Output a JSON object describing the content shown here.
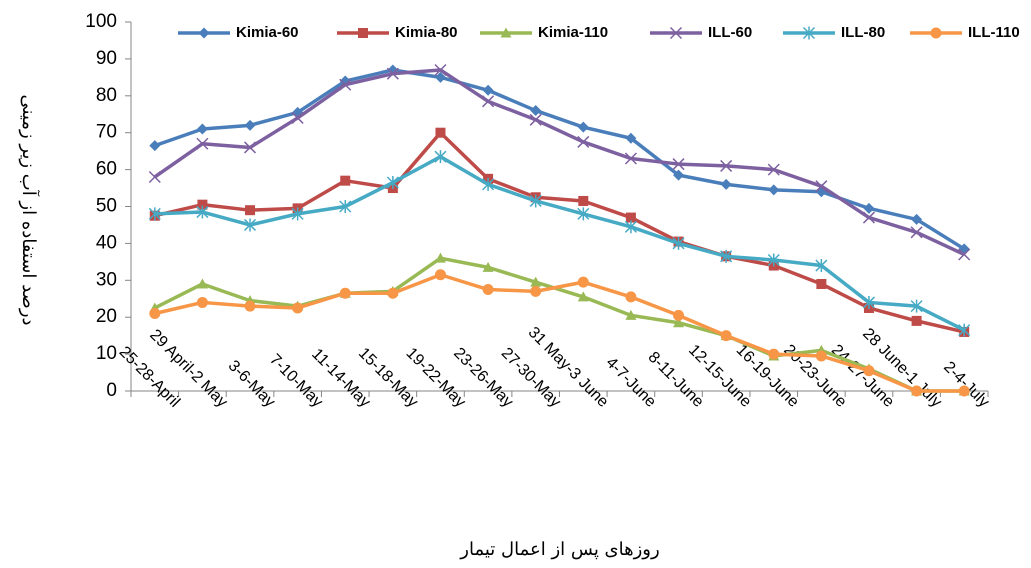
{
  "chart_data": {
    "type": "line",
    "y_label": "درصد استفاده از آب زیر زمینی",
    "x_label": "روزهای پس از اعمال تیمار",
    "categories": [
      "25-28-April",
      "29 April-2 May",
      "3-6-May",
      "7-10-May",
      "11-14-May",
      "15-18-May",
      "19-22-May",
      "23-26-May",
      "27-30-May",
      "31 May-3 June",
      "4-7-June",
      "8-11-June",
      "12-15-June",
      "16-19-June",
      "20-23-June",
      "24-27-June",
      "28 June-1 July",
      "2-4-July"
    ],
    "series": [
      {
        "name": "Kimia-60",
        "color": "#4a7ebb",
        "marker": "diamond",
        "values": [
          66.5,
          71,
          72,
          75.5,
          84,
          87,
          85,
          81.5,
          76,
          71.5,
          68.5,
          58.5,
          56,
          54.5,
          54,
          49.5,
          46.5,
          38.5
        ]
      },
      {
        "name": "Kimia-80",
        "color": "#be4b48",
        "marker": "square",
        "values": [
          47.5,
          50.5,
          49,
          49.5,
          57,
          55,
          70,
          57.5,
          52.5,
          51.5,
          47,
          40.5,
          36.5,
          34,
          29,
          22.5,
          19,
          16
        ]
      },
      {
        "name": "Kimia-110",
        "color": "#98b954",
        "marker": "triangle",
        "values": [
          22.5,
          29,
          24.5,
          23,
          26.5,
          27,
          36,
          33.5,
          29.5,
          25.5,
          20.5,
          18.5,
          15,
          9.5,
          11,
          6,
          0,
          0
        ]
      },
      {
        "name": "ILL-60",
        "color": "#7d60a0",
        "marker": "x",
        "values": [
          58,
          67,
          66,
          74,
          83,
          86,
          87,
          78.5,
          73.5,
          67.5,
          63,
          61.5,
          61,
          60,
          55.5,
          47,
          43,
          37
        ]
      },
      {
        "name": "ILL-80",
        "color": "#46aac5",
        "marker": "star",
        "values": [
          48,
          48.5,
          45,
          48,
          50,
          56.5,
          63.5,
          56,
          51.5,
          48,
          44.5,
          40,
          36.5,
          35.5,
          34,
          24,
          23,
          16.5
        ]
      },
      {
        "name": "ILL-110",
        "color": "#f79646",
        "marker": "circle",
        "values": [
          21,
          24,
          23,
          22.5,
          26.5,
          26.5,
          31.5,
          27.5,
          27,
          29.5,
          25.5,
          20.5,
          15,
          10,
          9.5,
          5.5,
          0,
          0
        ]
      }
    ],
    "ylim": [
      0,
      100
    ],
    "yticks": [
      0,
      10,
      20,
      30,
      40,
      50,
      60,
      70,
      80,
      90,
      100
    ],
    "grid": false,
    "legend": "top"
  }
}
